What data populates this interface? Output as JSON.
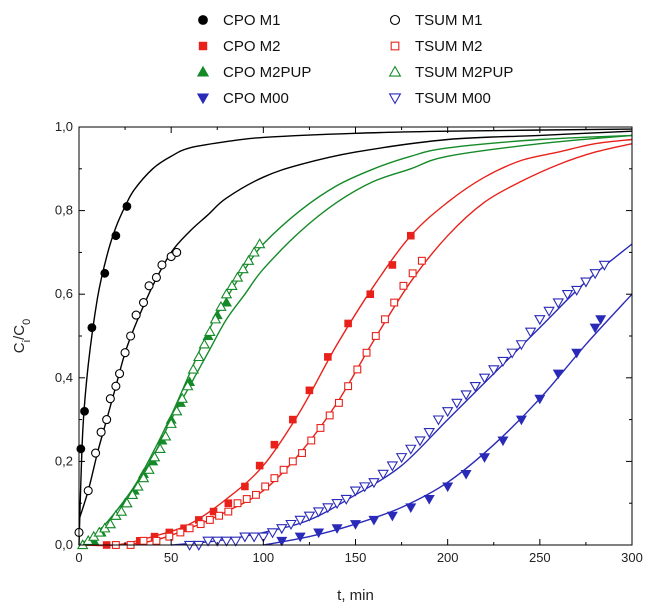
{
  "chart_data": {
    "type": "scatter",
    "title": "",
    "xlabel": "t, min",
    "ylabel": {
      "main": "C",
      "sub1": "i",
      "mid": "/C",
      "sub2": "0"
    },
    "xlim": [
      0,
      300
    ],
    "ylim": [
      0,
      1.0
    ],
    "x_ticks": [
      0,
      50,
      100,
      150,
      200,
      250,
      300
    ],
    "x_tick_labels": [
      "0",
      "50",
      "100",
      "150",
      "200",
      "250",
      "300"
    ],
    "y_ticks": [
      0,
      0.2,
      0.4,
      0.6,
      0.8,
      1.0
    ],
    "y_tick_labels": [
      "0,0",
      "0,2",
      "0,4",
      "0,6",
      "0,8",
      "1,0"
    ],
    "grid": false,
    "legend_position": "top",
    "series": [
      {
        "name": "CPO M1",
        "color": "#000000",
        "marker": "circle",
        "filled": true,
        "x": [
          1,
          3,
          7,
          14,
          20,
          26
        ],
        "y": [
          0.23,
          0.32,
          0.52,
          0.65,
          0.74,
          0.81
        ]
      },
      {
        "name": "TSUM M1",
        "color": "#000000",
        "marker": "circle",
        "filled": false,
        "x": [
          0,
          5,
          9,
          12,
          15,
          17,
          20,
          22,
          25,
          28,
          31,
          35,
          38,
          42,
          45,
          50,
          53
        ],
        "y": [
          0.03,
          0.13,
          0.22,
          0.27,
          0.3,
          0.35,
          0.38,
          0.41,
          0.46,
          0.5,
          0.55,
          0.58,
          0.62,
          0.64,
          0.67,
          0.69,
          0.7
        ]
      },
      {
        "name": "CPO M2",
        "color": "#e8221b",
        "marker": "square",
        "filled": true,
        "x": [
          15,
          33,
          41,
          49,
          57,
          65,
          73,
          81,
          90,
          98,
          106,
          116,
          125,
          135,
          146,
          158,
          170,
          180
        ],
        "y": [
          0.0,
          0.01,
          0.02,
          0.03,
          0.04,
          0.06,
          0.08,
          0.1,
          0.14,
          0.19,
          0.24,
          0.3,
          0.37,
          0.45,
          0.53,
          0.6,
          0.67,
          0.74
        ]
      },
      {
        "name": "TSUM M2",
        "color": "#e8221b",
        "marker": "square",
        "filled": false,
        "x": [
          20,
          28,
          35,
          42,
          49,
          55,
          60,
          66,
          71,
          76,
          81,
          86,
          91,
          96,
          101,
          106,
          111,
          116,
          121,
          126,
          131,
          136,
          141,
          146,
          151,
          156,
          161,
          166,
          171,
          176,
          181,
          186
        ],
        "y": [
          0.0,
          0.0,
          0.01,
          0.01,
          0.02,
          0.03,
          0.04,
          0.05,
          0.06,
          0.07,
          0.08,
          0.1,
          0.11,
          0.12,
          0.14,
          0.16,
          0.18,
          0.2,
          0.22,
          0.25,
          0.28,
          0.31,
          0.34,
          0.38,
          0.42,
          0.46,
          0.5,
          0.54,
          0.58,
          0.62,
          0.65,
          0.68
        ]
      },
      {
        "name": "CPO M2PUP",
        "color": "#148a28",
        "marker": "triangle-up",
        "filled": true,
        "x": [
          8,
          12,
          17,
          20,
          25,
          30,
          35,
          40,
          45,
          50,
          55,
          60,
          65,
          70,
          75,
          80
        ],
        "y": [
          0.01,
          0.03,
          0.05,
          0.07,
          0.1,
          0.13,
          0.17,
          0.2,
          0.25,
          0.3,
          0.34,
          0.39,
          0.45,
          0.5,
          0.55,
          0.58
        ]
      },
      {
        "name": "TSUM M2PUP",
        "color": "#148a28",
        "marker": "triangle-up",
        "filled": false,
        "x": [
          2,
          5,
          8,
          11,
          14,
          17,
          20,
          23,
          26,
          29,
          32,
          35,
          38,
          41,
          44,
          47,
          50,
          53,
          56,
          59,
          62,
          65,
          68,
          71,
          74,
          77,
          80,
          83,
          86,
          89,
          92,
          95,
          98
        ],
        "y": [
          0.0,
          0.01,
          0.02,
          0.03,
          0.04,
          0.05,
          0.07,
          0.08,
          0.1,
          0.12,
          0.14,
          0.16,
          0.18,
          0.21,
          0.23,
          0.26,
          0.29,
          0.32,
          0.35,
          0.38,
          0.42,
          0.45,
          0.48,
          0.51,
          0.54,
          0.57,
          0.6,
          0.62,
          0.64,
          0.66,
          0.68,
          0.7,
          0.72
        ]
      },
      {
        "name": "CPO M00",
        "color": "#2a2ab8",
        "marker": "triangle-down",
        "filled": true,
        "x": [
          110,
          120,
          130,
          140,
          150,
          160,
          170,
          180,
          190,
          200,
          210,
          220,
          230,
          240,
          250,
          260,
          270,
          280,
          283
        ],
        "y": [
          0.01,
          0.02,
          0.03,
          0.04,
          0.05,
          0.06,
          0.07,
          0.09,
          0.11,
          0.14,
          0.17,
          0.21,
          0.25,
          0.3,
          0.35,
          0.41,
          0.46,
          0.52,
          0.54
        ]
      },
      {
        "name": "TSUM M00",
        "color": "#2a2ab8",
        "marker": "triangle-down",
        "filled": false,
        "x": [
          60,
          65,
          70,
          75,
          80,
          85,
          90,
          95,
          100,
          105,
          110,
          115,
          120,
          125,
          130,
          135,
          140,
          145,
          150,
          155,
          160,
          165,
          170,
          175,
          180,
          185,
          190,
          195,
          200,
          205,
          210,
          215,
          220,
          225,
          230,
          235,
          240,
          245,
          250,
          255,
          260,
          265,
          270,
          275,
          280,
          285
        ],
        "y": [
          0.0,
          0.0,
          0.01,
          0.01,
          0.01,
          0.01,
          0.02,
          0.02,
          0.02,
          0.03,
          0.04,
          0.05,
          0.06,
          0.07,
          0.08,
          0.09,
          0.1,
          0.11,
          0.13,
          0.14,
          0.15,
          0.17,
          0.19,
          0.21,
          0.23,
          0.25,
          0.27,
          0.3,
          0.32,
          0.34,
          0.36,
          0.38,
          0.4,
          0.42,
          0.44,
          0.46,
          0.48,
          0.51,
          0.54,
          0.56,
          0.58,
          0.6,
          0.61,
          0.63,
          0.65,
          0.67
        ]
      }
    ],
    "fit_curves": [
      {
        "series": "CPO M1",
        "color": "#000000",
        "x": [
          0,
          2,
          5,
          10,
          15,
          20,
          25,
          30,
          40,
          50,
          60,
          80,
          100,
          150,
          200,
          300
        ],
        "y": [
          0.0,
          0.27,
          0.43,
          0.59,
          0.69,
          0.76,
          0.81,
          0.85,
          0.9,
          0.93,
          0.95,
          0.965,
          0.975,
          0.985,
          0.99,
          0.995
        ]
      },
      {
        "series": "TSUM M1",
        "color": "#000000",
        "x": [
          0,
          5,
          10,
          15,
          20,
          25,
          30,
          40,
          50,
          60,
          70,
          80,
          100,
          120,
          150,
          200,
          250,
          300
        ],
        "y": [
          0.06,
          0.13,
          0.22,
          0.3,
          0.38,
          0.46,
          0.52,
          0.62,
          0.7,
          0.75,
          0.79,
          0.83,
          0.88,
          0.91,
          0.94,
          0.97,
          0.98,
          0.99
        ]
      },
      {
        "series": "CPO M2PUP",
        "color": "#148a28",
        "x": [
          0,
          10,
          20,
          30,
          40,
          50,
          60,
          70,
          80,
          90,
          100,
          120,
          140,
          160,
          180,
          200,
          250,
          300
        ],
        "y": [
          0.0,
          0.03,
          0.08,
          0.14,
          0.22,
          0.31,
          0.41,
          0.51,
          0.59,
          0.66,
          0.72,
          0.8,
          0.86,
          0.9,
          0.93,
          0.95,
          0.97,
          0.98
        ]
      },
      {
        "series": "TSUM M2PUP",
        "color": "#148a28",
        "x": [
          0,
          10,
          20,
          30,
          40,
          50,
          60,
          70,
          80,
          90,
          100,
          120,
          140,
          160,
          180,
          200,
          250,
          300
        ],
        "y": [
          0.0,
          0.03,
          0.08,
          0.14,
          0.21,
          0.3,
          0.38,
          0.46,
          0.54,
          0.6,
          0.66,
          0.75,
          0.82,
          0.87,
          0.9,
          0.93,
          0.96,
          0.98
        ]
      },
      {
        "series": "CPO M2",
        "color": "#e8221b",
        "x": [
          0,
          20,
          40,
          60,
          80,
          100,
          120,
          140,
          160,
          180,
          200,
          220,
          240,
          260,
          280,
          300
        ],
        "y": [
          0.0,
          0.0,
          0.02,
          0.05,
          0.11,
          0.19,
          0.32,
          0.48,
          0.62,
          0.74,
          0.82,
          0.88,
          0.92,
          0.94,
          0.96,
          0.97
        ]
      },
      {
        "series": "TSUM M2",
        "color": "#e8221b",
        "x": [
          0,
          20,
          40,
          60,
          80,
          100,
          120,
          140,
          160,
          180,
          200,
          220,
          240,
          260,
          280,
          300
        ],
        "y": [
          0.0,
          0.0,
          0.01,
          0.04,
          0.08,
          0.13,
          0.22,
          0.34,
          0.49,
          0.63,
          0.74,
          0.82,
          0.87,
          0.91,
          0.94,
          0.96
        ]
      },
      {
        "series": "TSUM M00",
        "color": "#2a2ab8",
        "x": [
          50,
          75,
          100,
          125,
          150,
          175,
          200,
          225,
          250,
          275,
          300
        ],
        "y": [
          0.0,
          0.01,
          0.03,
          0.06,
          0.12,
          0.19,
          0.3,
          0.41,
          0.52,
          0.63,
          0.72
        ]
      },
      {
        "series": "CPO M00",
        "color": "#2a2ab8",
        "x": [
          100,
          125,
          150,
          175,
          200,
          225,
          250,
          275,
          300
        ],
        "y": [
          0.0,
          0.02,
          0.05,
          0.09,
          0.15,
          0.24,
          0.35,
          0.48,
          0.6
        ]
      }
    ]
  }
}
